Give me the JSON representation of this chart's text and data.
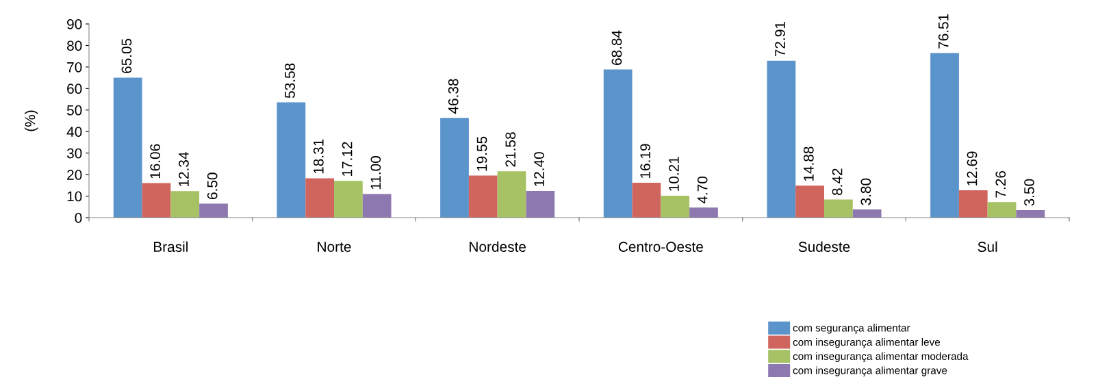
{
  "chart_data": {
    "type": "bar",
    "ylabel": "(%)",
    "categories": [
      "Brasil",
      "Norte",
      "Nordeste",
      "Centro-Oeste",
      "Sudeste",
      "Sul"
    ],
    "series": [
      {
        "name": "com segurança alimentar",
        "color": "#5b93cb",
        "values": [
          65.05,
          53.58,
          46.38,
          68.84,
          72.91,
          76.51
        ]
      },
      {
        "name": "com insegurança alimentar leve",
        "color": "#d0655e",
        "values": [
          16.06,
          18.31,
          19.55,
          16.19,
          14.88,
          12.69
        ]
      },
      {
        "name": "com insegurança alimentar moderada",
        "color": "#a6c264",
        "values": [
          12.34,
          17.12,
          21.58,
          10.21,
          8.42,
          7.26
        ]
      },
      {
        "name": "com insegurança alimentar grave",
        "color": "#8d78b0",
        "values": [
          6.5,
          11.0,
          12.4,
          4.7,
          3.8,
          3.5
        ]
      }
    ],
    "value_labels": [
      [
        "65.05",
        "53.58",
        "46.38",
        "68.84",
        "72.91",
        "76.51"
      ],
      [
        "16.06",
        "18.31",
        "19.55",
        "16.19",
        "14.88",
        "12.69"
      ],
      [
        "12.34",
        "17.12",
        "21.58",
        "10.21",
        "8.42",
        "7.26"
      ],
      [
        "6.50",
        "11.00",
        "12.40",
        "4.70",
        "3.80",
        "3.50"
      ]
    ],
    "ylim": [
      0,
      90
    ],
    "yticks": [
      0,
      10,
      20,
      30,
      40,
      50,
      60,
      70,
      80,
      90
    ],
    "grid": false,
    "legend": "bottom right"
  }
}
